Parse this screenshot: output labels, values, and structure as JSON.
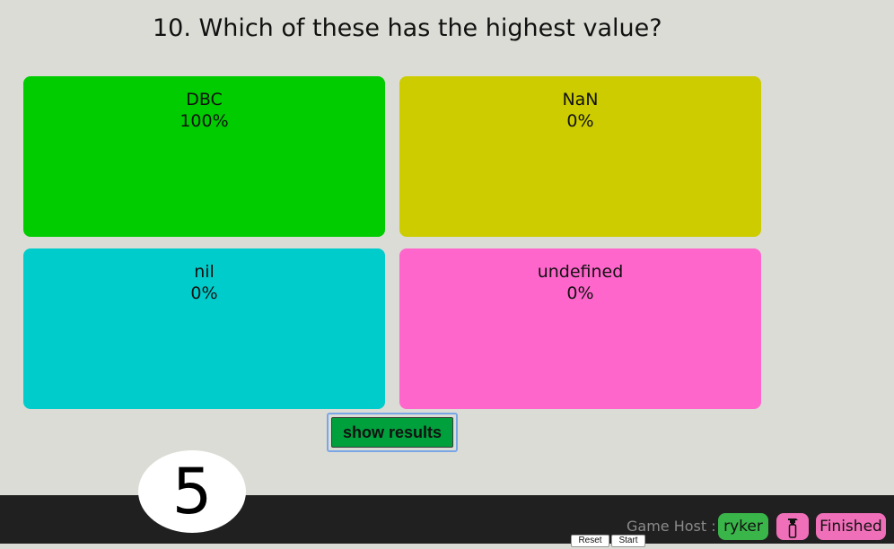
{
  "question": {
    "text": "10. Which of these has the highest value?"
  },
  "answers": [
    {
      "label": "DBC",
      "percent": "100%",
      "color": "#00cc00"
    },
    {
      "label": "NaN",
      "percent": "0%",
      "color": "#cccc00"
    },
    {
      "label": "nil",
      "percent": "0%",
      "color": "#00cccc"
    },
    {
      "label": "undefined",
      "percent": "0%",
      "color": "#ff66cc"
    }
  ],
  "show_results": {
    "label": "show results"
  },
  "timer": {
    "value": "5"
  },
  "footer": {
    "host_label": "Game Host :",
    "host_name": "ryker",
    "host_icon": "spray-bottle-icon",
    "status": "Finished",
    "reset_label": "Reset",
    "start_label": "Start"
  }
}
